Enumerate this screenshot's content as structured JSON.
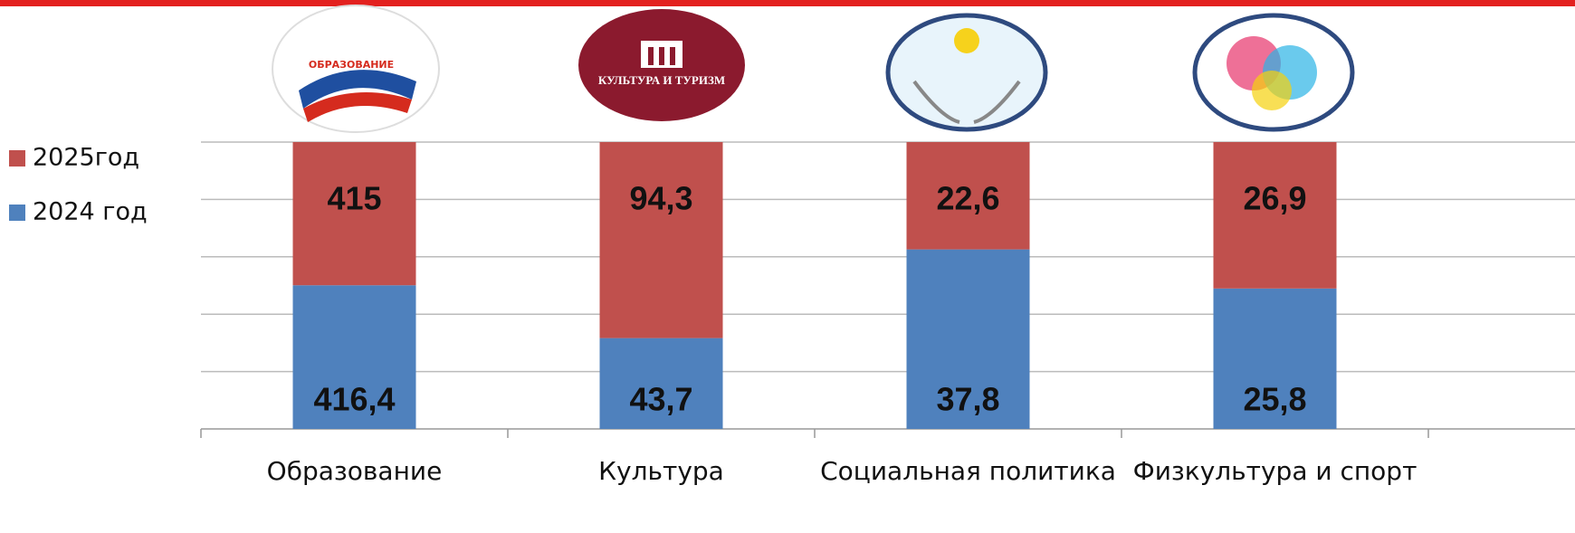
{
  "logo_texts": [
    "ОБРАЗОВАНИЕ",
    "КУЛЬТУРА И ТУРИЗМ",
    null,
    null
  ],
  "chart_data": {
    "type": "bar",
    "stacking": "percent",
    "categories": [
      "Образование",
      "Культура",
      "Социальная политика",
      "Физкультура и спорт"
    ],
    "series": [
      {
        "name": "2024 год",
        "color": "#4f81bd",
        "values": [
          416.4,
          43.7,
          37.8,
          25.8
        ],
        "value_labels": [
          "416,4",
          "43,7",
          "37,8",
          "25,8"
        ]
      },
      {
        "name": "2025год",
        "color": "#c0504d",
        "values": [
          415,
          94.3,
          22.6,
          26.9
        ],
        "value_labels": [
          "415",
          "94,3",
          "22,6",
          "26,9"
        ]
      }
    ],
    "ylim": [
      0,
      100
    ],
    "yticks": [
      0,
      20,
      40,
      60,
      80,
      100
    ],
    "grid": true,
    "legend": "left"
  }
}
